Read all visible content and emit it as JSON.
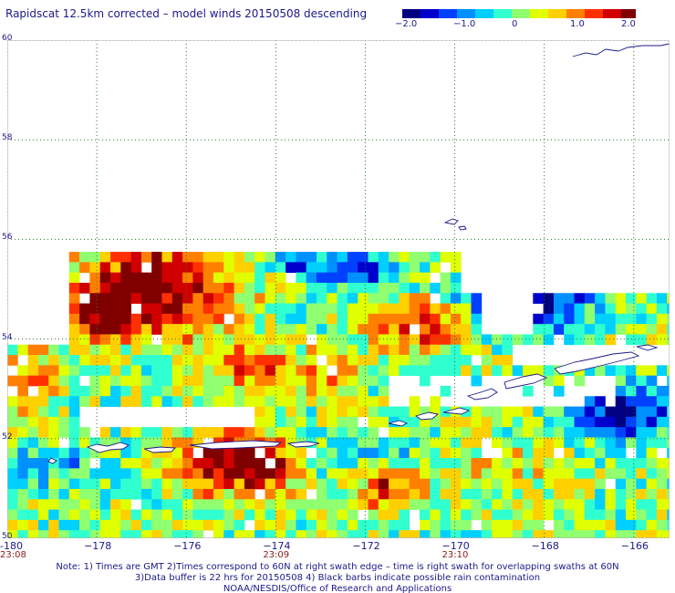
{
  "title": "Rapidscat 12.5km corrected – model winds 20150508 descending",
  "colorbar": {
    "ticks": [
      "−2.0",
      "−1.0",
      "0",
      "1.0",
      "2.0"
    ],
    "tick_values": [
      -2.0,
      -1.0,
      0,
      1.0,
      2.0
    ],
    "colors": [
      "#000080",
      "#0000cd",
      "#0040ff",
      "#0090ff",
      "#00d0ff",
      "#30ffd0",
      "#90ff70",
      "#e0ff00",
      "#ffd000",
      "#ff8000",
      "#ff3000",
      "#d00000",
      "#800000"
    ]
  },
  "chart_data": {
    "type": "heatmap",
    "lat_range": [
      50,
      60
    ],
    "lon_range": [
      -180,
      -165.2
    ],
    "y_ticks": [
      {
        "value": 50,
        "label": "50"
      },
      {
        "value": 52,
        "label": "52"
      },
      {
        "value": 54,
        "label": "54"
      },
      {
        "value": 56,
        "label": "56"
      },
      {
        "value": 58,
        "label": "58"
      },
      {
        "value": 60,
        "label": "60"
      }
    ],
    "x_ticks": [
      {
        "value": -180,
        "label": "-180"
      },
      {
        "value": -178,
        "label": "−178"
      },
      {
        "value": -176,
        "label": "−176"
      },
      {
        "value": -174,
        "label": "−174"
      },
      {
        "value": -172,
        "label": "−172"
      },
      {
        "value": -170,
        "label": "−170"
      },
      {
        "value": -168,
        "label": "−168"
      },
      {
        "value": -166,
        "label": "−166"
      }
    ],
    "time_ticks": [
      {
        "value": -180,
        "label": "23:08"
      },
      {
        "value": -174,
        "label": "23:09"
      },
      {
        "value": -170,
        "label": "23:10"
      }
    ],
    "value_range": [
      -2.0,
      2.0
    ],
    "grid": true
  },
  "notes": [
    "Note: 1) Times are GMT 2)Times correspond to 60N at right swath edge – time is right swath for overlapping swaths at 60N",
    "3)Data buffer is 22 hrs for 20150508 4) Black barbs indicate possible rain contamination",
    "NOAA/NESDIS/Office of Research and Applications"
  ]
}
